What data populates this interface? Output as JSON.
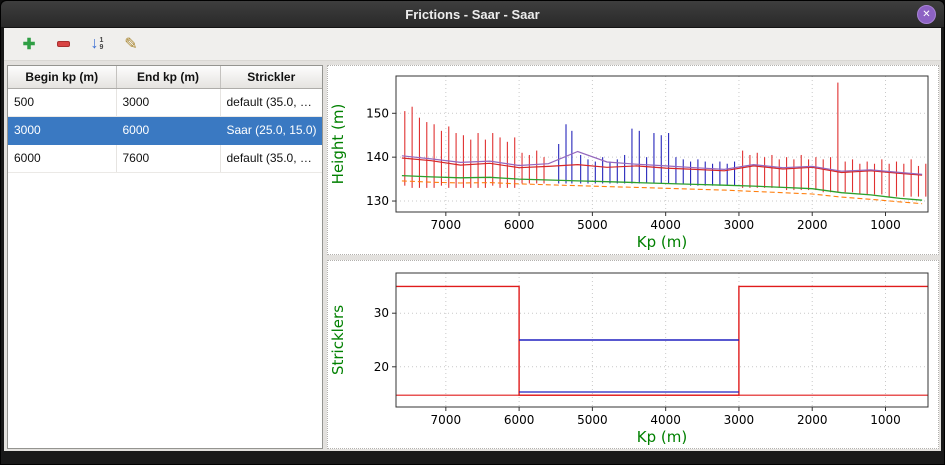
{
  "window": {
    "title": "Frictions - Saar - Saar",
    "close_glyph": "✕"
  },
  "toolbar": {
    "buttons": [
      {
        "name": "add",
        "glyph": "✚",
        "color": "#2f9e44"
      },
      {
        "name": "remove",
        "color": "#d84343"
      },
      {
        "name": "sort-numeric",
        "glyph": "↓",
        "color": "#3b6fd4",
        "sub_top": "1",
        "sub_bottom": "9"
      },
      {
        "name": "edit",
        "glyph": "✎",
        "color": "#a8842c"
      }
    ]
  },
  "table": {
    "selection_color": "#3a79c2",
    "columns": [
      "Begin kp (m)",
      "End kp (m)",
      "Strickler"
    ],
    "rows": [
      {
        "begin": "500",
        "end": "3000",
        "strickler": "default (35.0, …",
        "selected": false
      },
      {
        "begin": "3000",
        "end": "6000",
        "strickler": "Saar (25.0, 15.0)",
        "selected": true
      },
      {
        "begin": "6000",
        "end": "7600",
        "strickler": "default (35.0, …",
        "selected": false
      }
    ]
  },
  "chart_data": [
    {
      "type": "line",
      "title": "",
      "xlabel": "Kp (m)",
      "ylabel": "Height (m)",
      "x_reversed": true,
      "xlim": [
        420,
        7680
      ],
      "ylim": [
        127.5,
        158.5
      ],
      "xticks": [
        7000,
        6000,
        5000,
        4000,
        3000,
        2000,
        1000
      ],
      "yticks": [
        130,
        140,
        150
      ],
      "grid": "dotted",
      "legend": "none",
      "label_color": "#008000",
      "series": [
        {
          "name": "levels-red",
          "type": "vlines",
          "color": "#e03131",
          "width": 1.1,
          "data": [
            [
              7560,
              133.5,
              150.5
            ],
            [
              7460,
              133,
              151.5
            ],
            [
              7360,
              133,
              149
            ],
            [
              7260,
              133,
              148
            ],
            [
              7160,
              133,
              147.5
            ],
            [
              7060,
              133.5,
              146
            ],
            [
              6960,
              133,
              147
            ],
            [
              6860,
              133,
              145.5
            ],
            [
              6760,
              133,
              145
            ],
            [
              6660,
              133,
              144
            ],
            [
              6560,
              133,
              145.5
            ],
            [
              6460,
              133,
              144
            ],
            [
              6360,
              133.5,
              145.5
            ],
            [
              6260,
              133,
              144.5
            ],
            [
              6160,
              133,
              143.5
            ],
            [
              6060,
              133,
              144.5
            ],
            [
              5960,
              134,
              141
            ],
            [
              5860,
              134,
              140.5
            ],
            [
              5760,
              134,
              141.5
            ],
            [
              5660,
              134,
              140
            ],
            [
              2950,
              133,
              141.5
            ],
            [
              2850,
              133,
              140.5
            ],
            [
              2750,
              133,
              141
            ],
            [
              2650,
              133,
              140
            ],
            [
              2550,
              133,
              140.5
            ],
            [
              2450,
              133,
              139.5
            ],
            [
              2350,
              132.5,
              140
            ],
            [
              2250,
              132.5,
              139.5
            ],
            [
              2150,
              132.5,
              140.5
            ],
            [
              2050,
              132.5,
              139.5
            ],
            [
              1950,
              132.5,
              140
            ],
            [
              1850,
              132,
              139.5
            ],
            [
              1750,
              132,
              140
            ],
            [
              1650,
              132,
              157
            ],
            [
              1550,
              132,
              139
            ],
            [
              1450,
              132,
              139.5
            ],
            [
              1350,
              131.5,
              138.5
            ],
            [
              1250,
              131.5,
              139
            ],
            [
              1150,
              131.5,
              138.5
            ],
            [
              1050,
              131.5,
              139.5
            ],
            [
              950,
              131,
              138.5
            ],
            [
              850,
              131,
              139
            ],
            [
              750,
              131,
              138.5
            ],
            [
              650,
              131,
              139.5
            ],
            [
              550,
              131,
              138
            ],
            [
              450,
              131,
              138.5
            ]
          ]
        },
        {
          "name": "levels-blue",
          "type": "vlines",
          "color": "#2626bb",
          "width": 1.1,
          "data": [
            [
              5460,
              134,
              143
            ],
            [
              5360,
              134,
              147.5
            ],
            [
              5280,
              134,
              146
            ],
            [
              5160,
              134,
              140.5
            ],
            [
              5060,
              134,
              139.5
            ],
            [
              4960,
              134,
              139
            ],
            [
              4860,
              134,
              140
            ],
            [
              4760,
              134,
              139
            ],
            [
              4660,
              134,
              139.5
            ],
            [
              4560,
              134,
              140.5
            ],
            [
              4460,
              134,
              146.5
            ],
            [
              4360,
              134,
              146
            ],
            [
              4260,
              134,
              140
            ],
            [
              4160,
              134,
              145.5
            ],
            [
              4060,
              134,
              145
            ],
            [
              3960,
              134,
              145.5
            ],
            [
              3860,
              134,
              140
            ],
            [
              3760,
              134,
              139.5
            ],
            [
              3660,
              133.5,
              139
            ],
            [
              3560,
              133.5,
              139.5
            ],
            [
              3460,
              133.5,
              139
            ],
            [
              3360,
              133.5,
              138.5
            ],
            [
              3260,
              133.5,
              139
            ],
            [
              3160,
              133.5,
              138.5
            ],
            [
              3060,
              133.5,
              139
            ]
          ]
        },
        {
          "name": "line-red",
          "type": "line",
          "color": "#d62728",
          "width": 1.2,
          "points": [
            [
              7600,
              139.8
            ],
            [
              7200,
              139.2
            ],
            [
              6800,
              138.2
            ],
            [
              6400,
              138.6
            ],
            [
              6000,
              137.6
            ],
            [
              5600,
              137.9
            ],
            [
              5200,
              138.3
            ],
            [
              4800,
              137.7
            ],
            [
              4400,
              138.0
            ],
            [
              4000,
              137.5
            ],
            [
              3600,
              137.2
            ],
            [
              3200,
              136.9
            ],
            [
              2800,
              138.0
            ],
            [
              2400,
              137.3
            ],
            [
              2000,
              137.7
            ],
            [
              1600,
              136.5
            ],
            [
              1200,
              136.9
            ],
            [
              800,
              136.3
            ],
            [
              500,
              135.9
            ]
          ]
        },
        {
          "name": "line-violet",
          "type": "line",
          "color": "#9467bd",
          "width": 1.2,
          "points": [
            [
              7600,
              140.3
            ],
            [
              7200,
              139.6
            ],
            [
              6800,
              138.8
            ],
            [
              6400,
              139.1
            ],
            [
              6000,
              138.1
            ],
            [
              5600,
              138.5
            ],
            [
              5200,
              141.3
            ],
            [
              4800,
              138.9
            ],
            [
              4400,
              138.4
            ],
            [
              4000,
              138.0
            ],
            [
              3600,
              137.6
            ],
            [
              3200,
              137.2
            ],
            [
              2800,
              138.3
            ],
            [
              2400,
              137.6
            ],
            [
              2000,
              137.9
            ],
            [
              1600,
              136.8
            ],
            [
              1200,
              137.1
            ],
            [
              800,
              136.5
            ],
            [
              500,
              136.1
            ]
          ]
        },
        {
          "name": "line-green",
          "type": "line",
          "color": "#2ca02c",
          "width": 1.3,
          "points": [
            [
              7600,
              135.8
            ],
            [
              7200,
              135.5
            ],
            [
              6800,
              135.3
            ],
            [
              6400,
              135.4
            ],
            [
              6000,
              135.0
            ],
            [
              5600,
              134.8
            ],
            [
              5200,
              134.6
            ],
            [
              4800,
              134.4
            ],
            [
              4400,
              134.2
            ],
            [
              4000,
              134.0
            ],
            [
              3600,
              133.8
            ],
            [
              3200,
              133.6
            ],
            [
              2800,
              133.4
            ],
            [
              2400,
              133.1
            ],
            [
              2000,
              132.8
            ],
            [
              1600,
              131.9
            ],
            [
              1200,
              131.4
            ],
            [
              800,
              130.6
            ],
            [
              500,
              130.2
            ]
          ]
        },
        {
          "name": "line-orange-dashed",
          "type": "line",
          "color": "#ff7f0e",
          "width": 1.1,
          "dash": "5,3",
          "points": [
            [
              7600,
              134.6
            ],
            [
              7200,
              134.3
            ],
            [
              6800,
              134.1
            ],
            [
              6400,
              134.2
            ],
            [
              6000,
              133.9
            ],
            [
              5600,
              133.7
            ],
            [
              5200,
              133.5
            ],
            [
              4800,
              133.3
            ],
            [
              4400,
              133.1
            ],
            [
              4000,
              132.9
            ],
            [
              3600,
              132.7
            ],
            [
              3200,
              132.5
            ],
            [
              2800,
              132.2
            ],
            [
              2400,
              131.9
            ],
            [
              2000,
              131.6
            ],
            [
              1600,
              130.9
            ],
            [
              1200,
              130.4
            ],
            [
              800,
              129.8
            ],
            [
              500,
              129.4
            ]
          ]
        }
      ]
    },
    {
      "type": "line",
      "title": "",
      "xlabel": "Kp (m)",
      "ylabel": "Stricklers",
      "x_reversed": true,
      "xlim": [
        420,
        7680
      ],
      "ylim": [
        12.5,
        37.5
      ],
      "xticks": [
        7000,
        6000,
        5000,
        4000,
        3000,
        2000,
        1000
      ],
      "yticks": [
        20,
        30
      ],
      "grid": "dotted",
      "legend": "none",
      "label_color": "#008000",
      "series": [
        {
          "name": "default-main-step",
          "type": "line",
          "color": "#e01b1b",
          "width": 1.4,
          "points": [
            [
              7680,
              35
            ],
            [
              6000,
              35
            ],
            [
              6000,
              14.7
            ],
            [
              3000,
              14.7
            ],
            [
              3000,
              35
            ],
            [
              420,
              35
            ]
          ]
        },
        {
          "name": "default-floodplain",
          "type": "line",
          "color": "#e01b1b",
          "width": 1.2,
          "points": [
            [
              7680,
              14.7
            ],
            [
              420,
              14.7
            ]
          ]
        },
        {
          "name": "saar-main",
          "type": "line",
          "color": "#2020c0",
          "width": 1.4,
          "points": [
            [
              6000,
              25
            ],
            [
              3000,
              25
            ]
          ]
        },
        {
          "name": "saar-floodplain",
          "type": "line",
          "color": "#2020c0",
          "width": 1.2,
          "points": [
            [
              6000,
              15.3
            ],
            [
              3000,
              15.3
            ]
          ]
        }
      ]
    }
  ]
}
